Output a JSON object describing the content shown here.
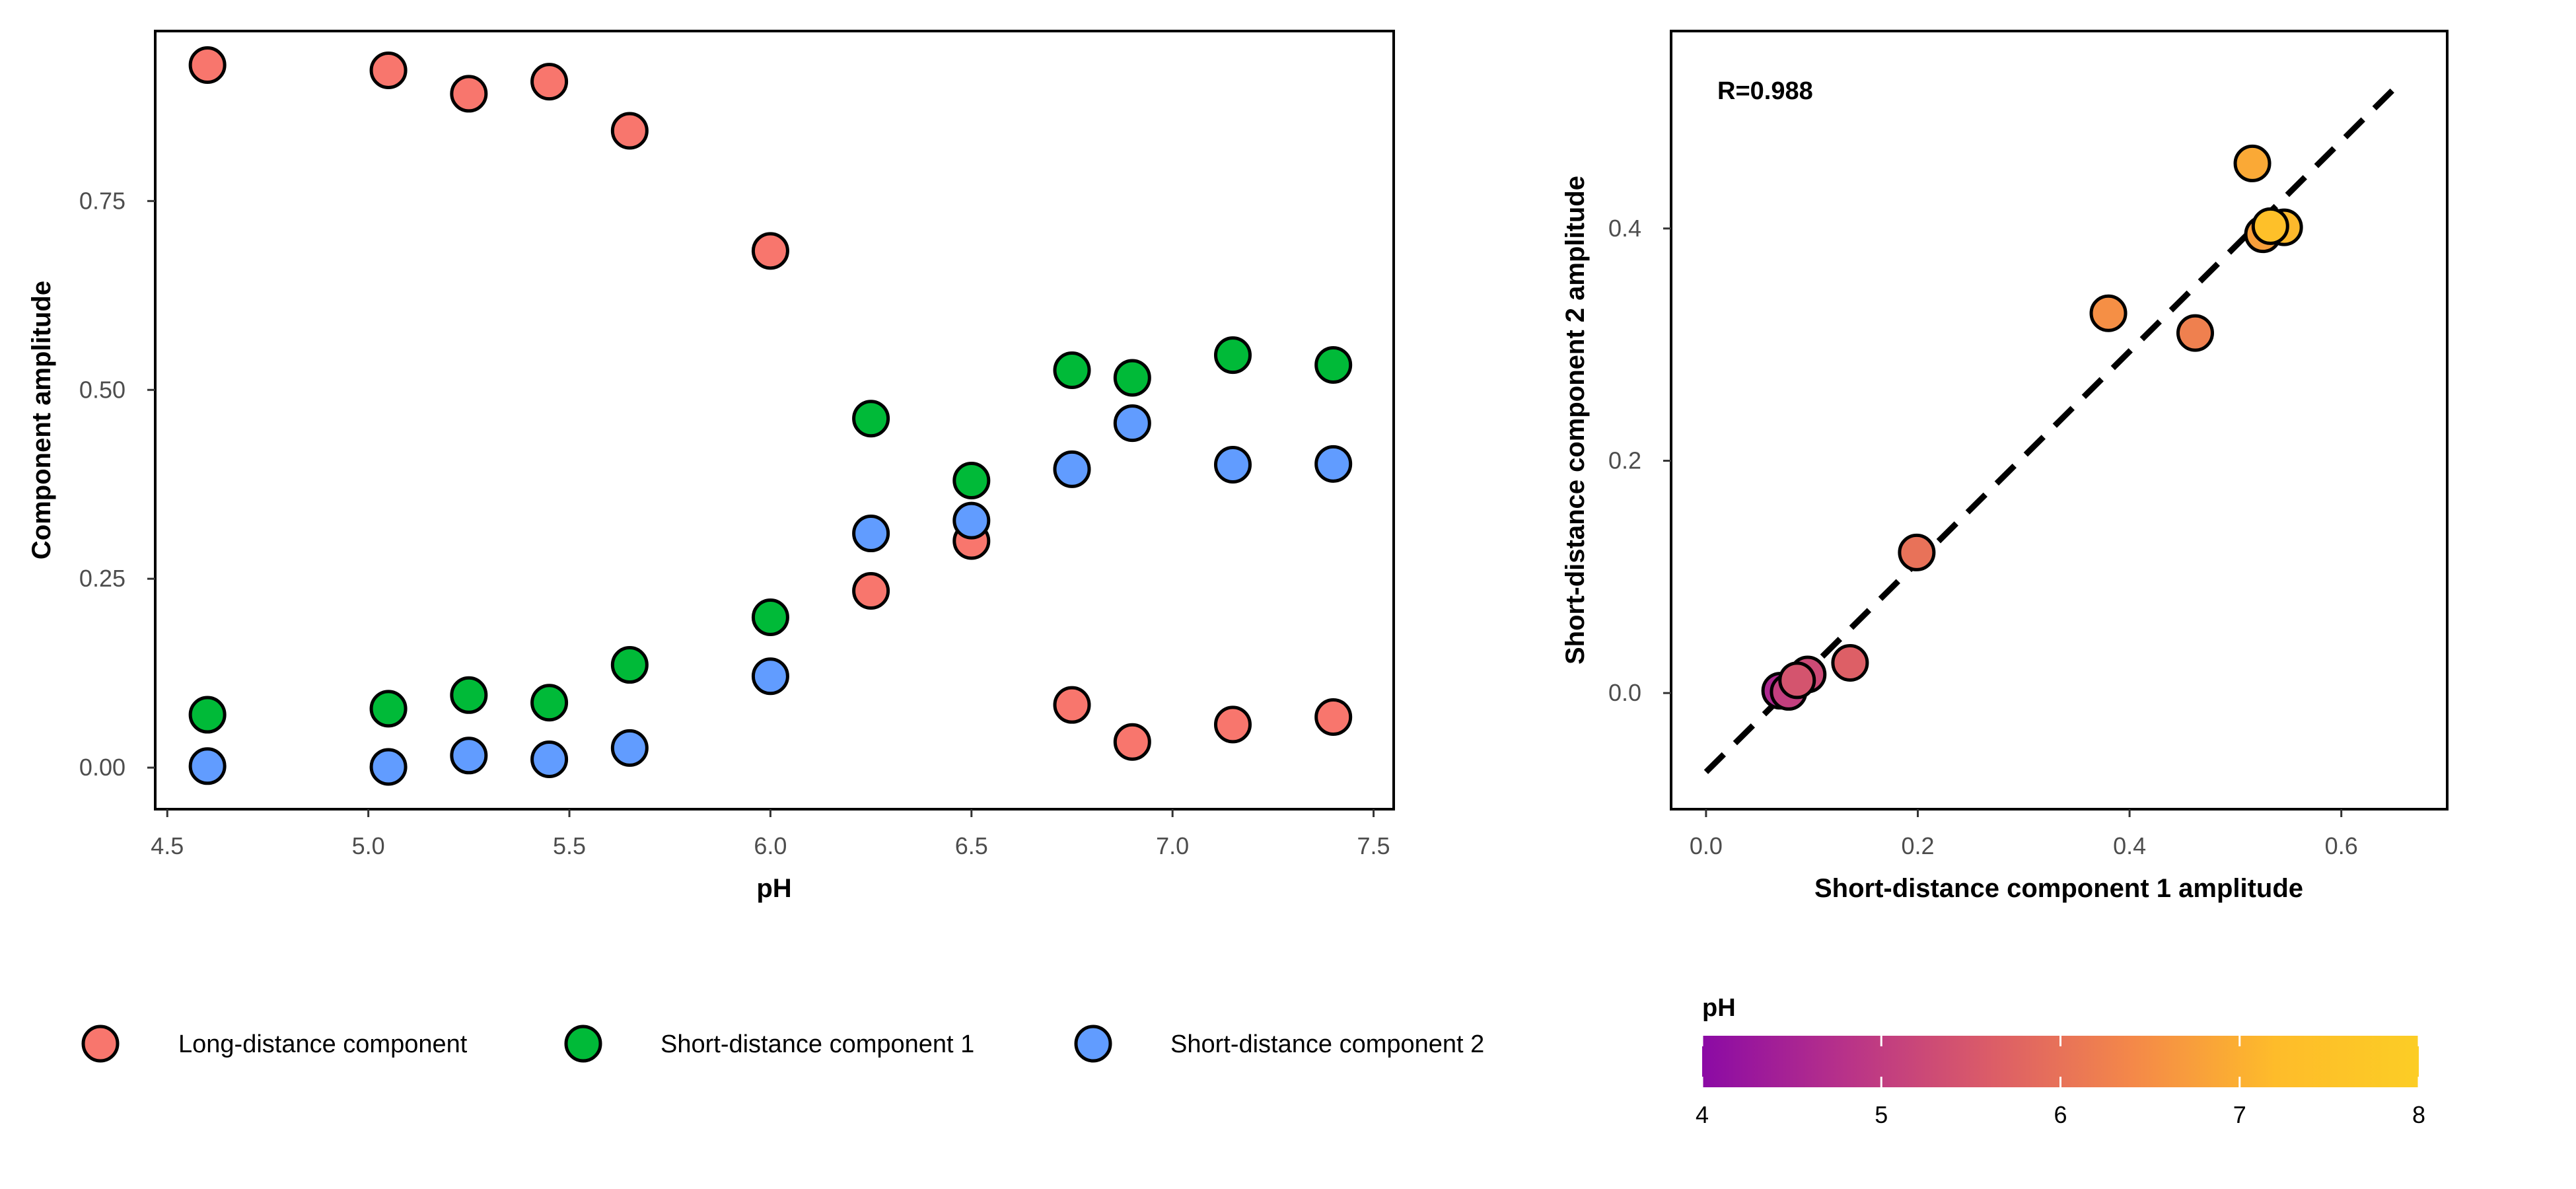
{
  "chart_data": [
    {
      "type": "scatter",
      "title": "",
      "xlabel": "pH",
      "ylabel": "Component amplitude",
      "xlim": [
        4.47,
        7.55
      ],
      "ylim": [
        -0.055,
        0.975
      ],
      "xticks": [
        "4.5",
        "5.0",
        "5.5",
        "6.0",
        "6.5",
        "7.0",
        "7.5"
      ],
      "yticks": [
        "0.00",
        "0.25",
        "0.50",
        "0.75"
      ],
      "grid": false,
      "legend_position": "bottom",
      "series": [
        {
          "name": "Long-distance component",
          "color": "#F8766D",
          "points": [
            {
              "x": 4.6,
              "y": 0.93
            },
            {
              "x": 5.05,
              "y": 0.923
            },
            {
              "x": 5.25,
              "y": 0.892
            },
            {
              "x": 5.45,
              "y": 0.908
            },
            {
              "x": 5.65,
              "y": 0.843
            },
            {
              "x": 6.0,
              "y": 0.684
            },
            {
              "x": 6.25,
              "y": 0.234
            },
            {
              "x": 6.5,
              "y": 0.3
            },
            {
              "x": 6.75,
              "y": 0.083
            },
            {
              "x": 6.9,
              "y": 0.034
            },
            {
              "x": 7.15,
              "y": 0.057
            },
            {
              "x": 7.4,
              "y": 0.067
            }
          ]
        },
        {
          "name": "Short-distance component 1",
          "color": "#00BA38",
          "points": [
            {
              "x": 4.6,
              "y": 0.07
            },
            {
              "x": 5.05,
              "y": 0.078
            },
            {
              "x": 5.25,
              "y": 0.096
            },
            {
              "x": 5.45,
              "y": 0.086
            },
            {
              "x": 5.65,
              "y": 0.136
            },
            {
              "x": 6.0,
              "y": 0.199
            },
            {
              "x": 6.25,
              "y": 0.462
            },
            {
              "x": 6.5,
              "y": 0.38
            },
            {
              "x": 6.75,
              "y": 0.526
            },
            {
              "x": 6.9,
              "y": 0.516
            },
            {
              "x": 7.15,
              "y": 0.546
            },
            {
              "x": 7.4,
              "y": 0.533
            }
          ]
        },
        {
          "name": "Short-distance component 2",
          "color": "#619CFF",
          "points": [
            {
              "x": 4.6,
              "y": 0.002
            },
            {
              "x": 5.05,
              "y": 0.001
            },
            {
              "x": 5.25,
              "y": 0.016
            },
            {
              "x": 5.45,
              "y": 0.011
            },
            {
              "x": 5.65,
              "y": 0.026
            },
            {
              "x": 6.0,
              "y": 0.121
            },
            {
              "x": 6.25,
              "y": 0.31
            },
            {
              "x": 6.5,
              "y": 0.327
            },
            {
              "x": 6.75,
              "y": 0.395
            },
            {
              "x": 6.9,
              "y": 0.456
            },
            {
              "x": 7.15,
              "y": 0.401
            },
            {
              "x": 7.4,
              "y": 0.402
            }
          ]
        }
      ]
    },
    {
      "type": "scatter",
      "title": "",
      "xlabel": "Short-distance component 1 amplitude",
      "ylabel": "Short-distance component 2 amplitude",
      "xlim": [
        -0.033,
        0.7
      ],
      "ylim": [
        -0.1,
        0.57
      ],
      "xticks": [
        "0.0",
        "0.2",
        "0.4",
        "0.6"
      ],
      "yticks": [
        "0.0",
        "0.2",
        "0.4"
      ],
      "grid": false,
      "annotation": "R=0.988",
      "fit_line": {
        "x": [
          0.0,
          0.655
        ],
        "y": [
          -0.068,
          0.525
        ],
        "style": "dashed"
      },
      "color_scale": {
        "title": "pH",
        "range": [
          4,
          8
        ],
        "ticks": [
          "4",
          "5",
          "6",
          "7",
          "8"
        ],
        "stops": [
          "#8B0AA5",
          "#B83289",
          "#DB5C68",
          "#F48849",
          "#FEBC2A",
          "#FCCD25"
        ]
      },
      "points": [
        {
          "x": 0.07,
          "y": 0.002,
          "pH": 4.6
        },
        {
          "x": 0.078,
          "y": 0.001,
          "pH": 5.05
        },
        {
          "x": 0.096,
          "y": 0.016,
          "pH": 5.25
        },
        {
          "x": 0.086,
          "y": 0.011,
          "pH": 5.45
        },
        {
          "x": 0.136,
          "y": 0.026,
          "pH": 5.65
        },
        {
          "x": 0.199,
          "y": 0.121,
          "pH": 6.0
        },
        {
          "x": 0.462,
          "y": 0.31,
          "pH": 6.25
        },
        {
          "x": 0.38,
          "y": 0.327,
          "pH": 6.5
        },
        {
          "x": 0.526,
          "y": 0.395,
          "pH": 6.75
        },
        {
          "x": 0.516,
          "y": 0.456,
          "pH": 6.9
        },
        {
          "x": 0.546,
          "y": 0.401,
          "pH": 7.15
        },
        {
          "x": 0.533,
          "y": 0.402,
          "pH": 7.4
        }
      ]
    }
  ]
}
